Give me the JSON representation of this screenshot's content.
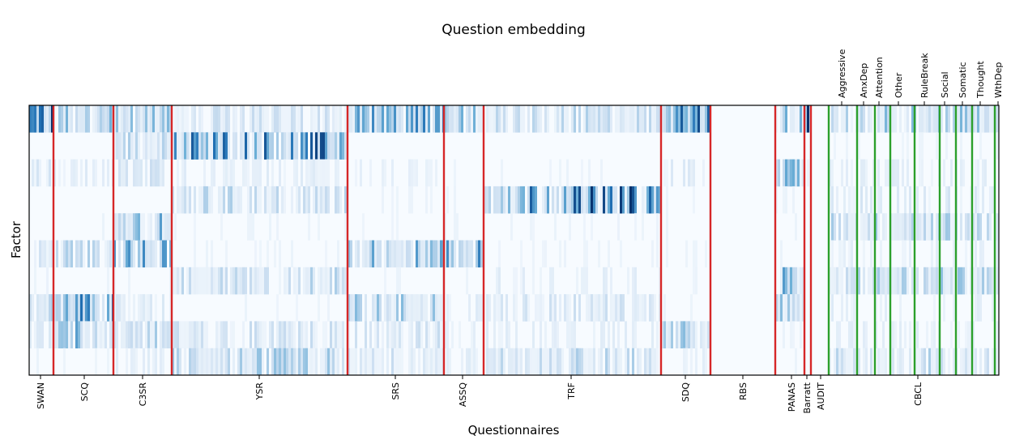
{
  "chart_data": {
    "type": "heatmap",
    "title": "Question embedding",
    "xlabel": "Questionnaires",
    "ylabel": "Factor",
    "n_factors": 10,
    "questionnaires": [
      "SWAN",
      "SCQ",
      "C3SR",
      "YSR",
      "SRS",
      "ASSQ",
      "TRF",
      "SDQ",
      "RBS",
      "PANAS",
      "Barratt",
      "AUDIT",
      "CBCL"
    ],
    "cbcl_subscales": [
      "Aggressive",
      "AnxDep",
      "Attention",
      "Other",
      "RuleBreak",
      "Social",
      "Somatic",
      "Thought",
      "WthDep"
    ],
    "colormap": [
      "#f7fbff",
      "#c6dbef",
      "#6baed6",
      "#2171b5",
      "#08306b"
    ],
    "separator_color": "#d62728",
    "subscale_separator_color": "#2ca02c",
    "grid": false,
    "colorbar": false
  }
}
